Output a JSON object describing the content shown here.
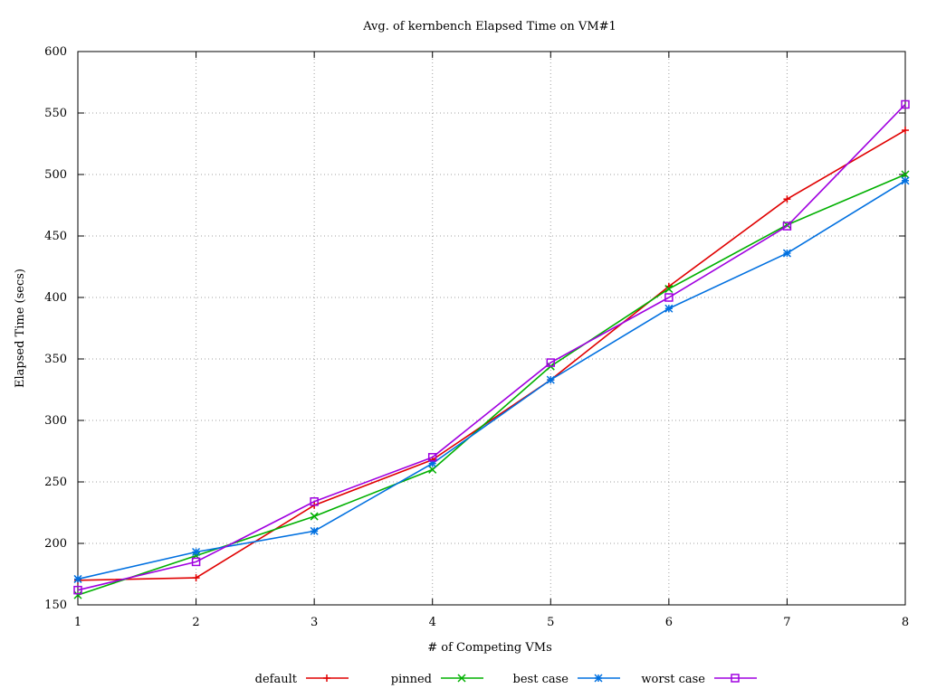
{
  "chart_data": {
    "type": "line",
    "title": "Avg. of kernbench Elapsed Time on VM#1",
    "xlabel": "# of Competing VMs",
    "ylabel": "Elapsed Time (secs)",
    "xlim": [
      1,
      8
    ],
    "ylim": [
      150,
      600
    ],
    "x_ticks": [
      1,
      2,
      3,
      4,
      5,
      6,
      7,
      8
    ],
    "y_ticks": [
      150,
      200,
      250,
      300,
      350,
      400,
      450,
      500,
      550,
      600
    ],
    "grid": true,
    "legend_position": "bottom-center",
    "x": [
      1,
      2,
      3,
      4,
      5,
      6,
      7,
      8
    ],
    "series": [
      {
        "name": "default",
        "color": "#e00000",
        "marker": "plus",
        "values": [
          170,
          172,
          231,
          268,
          333,
          409,
          480,
          536
        ]
      },
      {
        "name": "pinned",
        "color": "#00b000",
        "marker": "cross",
        "values": [
          158,
          190,
          222,
          260,
          344,
          407,
          459,
          500
        ]
      },
      {
        "name": "best case",
        "color": "#0070e0",
        "marker": "star",
        "values": [
          171,
          193,
          210,
          265,
          333,
          391,
          436,
          495
        ]
      },
      {
        "name": "worst case",
        "color": "#a000e0",
        "marker": "square",
        "values": [
          162,
          185,
          234,
          270,
          347,
          400,
          458,
          557
        ]
      }
    ]
  }
}
